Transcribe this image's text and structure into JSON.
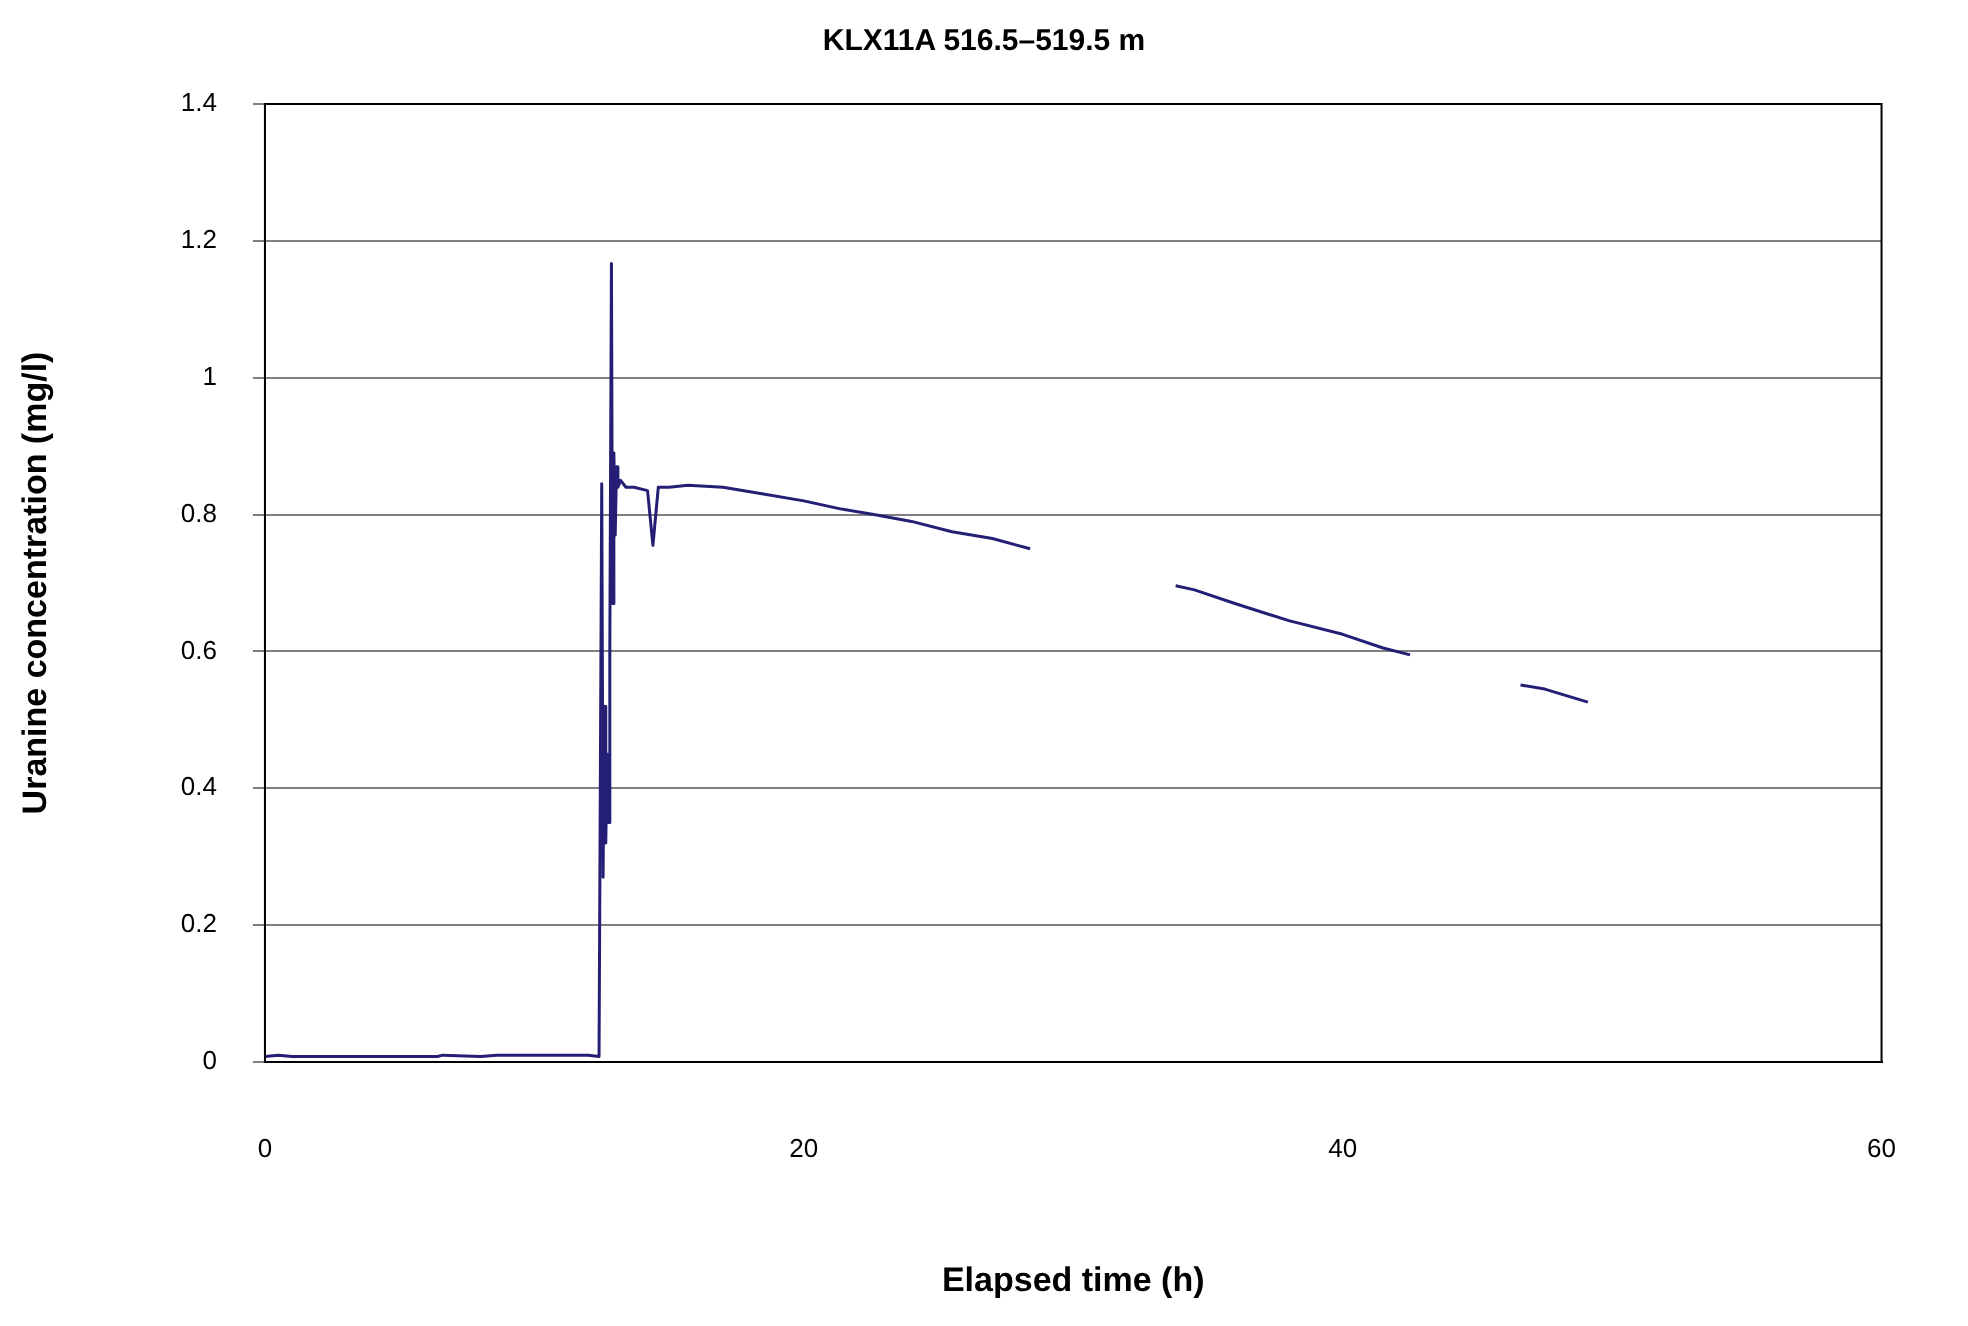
{
  "chart_data": {
    "type": "line",
    "title": "KLX11A 516.5–519.5 m",
    "xlabel": "Elapsed time (h)",
    "ylabel": "Uranine concentration (mg/l)",
    "xlim": [
      0,
      60
    ],
    "xticks": [
      0,
      20,
      40,
      60
    ],
    "ylim": [
      0,
      1.4
    ],
    "yticks": [
      0,
      0.2,
      0.4,
      0.6,
      0.8,
      1,
      1.2,
      1.4
    ],
    "grid": "y",
    "legend": false,
    "marker": "none",
    "line_style": "solid",
    "series": [
      {
        "color": "#241f75",
        "x": [
          0,
          0.5,
          1,
          1.5,
          3,
          6.4,
          6.6,
          8,
          8.6,
          9,
          10,
          11,
          12,
          12.4,
          12.5,
          12.55,
          12.6,
          12.65,
          12.7,
          12.75,
          12.8,
          12.86,
          12.9,
          12.95,
          13,
          13.05,
          13.1,
          13.2,
          13.4,
          13.7,
          14.2,
          14.4,
          14.6,
          15,
          15.7,
          17,
          18.5,
          20,
          21.4,
          22.6,
          24,
          25.5,
          27,
          28.4,
          30,
          33.8,
          34.5,
          36,
          38,
          40,
          41.5,
          42.5,
          44,
          46.6,
          47.5,
          49.1
        ],
        "values": [
          0.008,
          0.01,
          0.008,
          0.008,
          0.008,
          0.008,
          0.01,
          0.008,
          0.01,
          0.01,
          0.01,
          0.01,
          0.01,
          0.008,
          0.845,
          0.27,
          0.52,
          0.32,
          0.45,
          0.35,
          0.6,
          1.167,
          0.67,
          0.89,
          0.77,
          0.87,
          0.84,
          0.85,
          0.84,
          0.84,
          0.835,
          0.755,
          0.84,
          0.84,
          0.843,
          0.84,
          0.83,
          0.82,
          0.808,
          0.8,
          0.79,
          0.775,
          0.765,
          0.75,
          null,
          0.696,
          0.69,
          0.67,
          0.645,
          0.625,
          0.605,
          0.595,
          null,
          0.551,
          0.545,
          0.526
        ]
      }
    ]
  }
}
